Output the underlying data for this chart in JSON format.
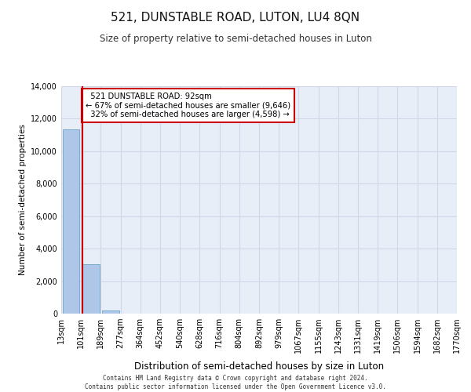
{
  "title": "521, DUNSTABLE ROAD, LUTON, LU4 8QN",
  "subtitle": "Size of property relative to semi-detached houses in Luton",
  "xlabel": "Distribution of semi-detached houses by size in Luton",
  "ylabel": "Number of semi-detached properties",
  "tick_labels": [
    "13sqm",
    "101sqm",
    "189sqm",
    "277sqm",
    "364sqm",
    "452sqm",
    "540sqm",
    "628sqm",
    "716sqm",
    "804sqm",
    "892sqm",
    "979sqm",
    "1067sqm",
    "1155sqm",
    "1243sqm",
    "1331sqm",
    "1419sqm",
    "1506sqm",
    "1594sqm",
    "1682sqm",
    "1770sqm"
  ],
  "bar_heights": [
    11350,
    3050,
    200,
    0,
    0,
    0,
    0,
    0,
    0,
    0,
    0,
    0,
    0,
    0,
    0,
    0,
    0,
    0,
    0,
    0
  ],
  "bar_color": "#aec6e8",
  "bar_edge_color": "#7aaad0",
  "property_line_x": 0.575,
  "property_label": "521 DUNSTABLE ROAD: 92sqm",
  "pct_smaller": 67,
  "pct_smaller_count": "9,646",
  "pct_larger": 32,
  "pct_larger_count": "4,598",
  "annotation_box_color": "#ffffff",
  "annotation_box_edge": "#cc0000",
  "property_line_color": "#cc0000",
  "ylim": [
    0,
    14000
  ],
  "yticks": [
    0,
    2000,
    4000,
    6000,
    8000,
    10000,
    12000,
    14000
  ],
  "grid_color": "#d0d8e8",
  "bg_color": "#e8eef8",
  "footer_line1": "Contains HM Land Registry data © Crown copyright and database right 2024.",
  "footer_line2": "Contains public sector information licensed under the Open Government Licence v3.0."
}
